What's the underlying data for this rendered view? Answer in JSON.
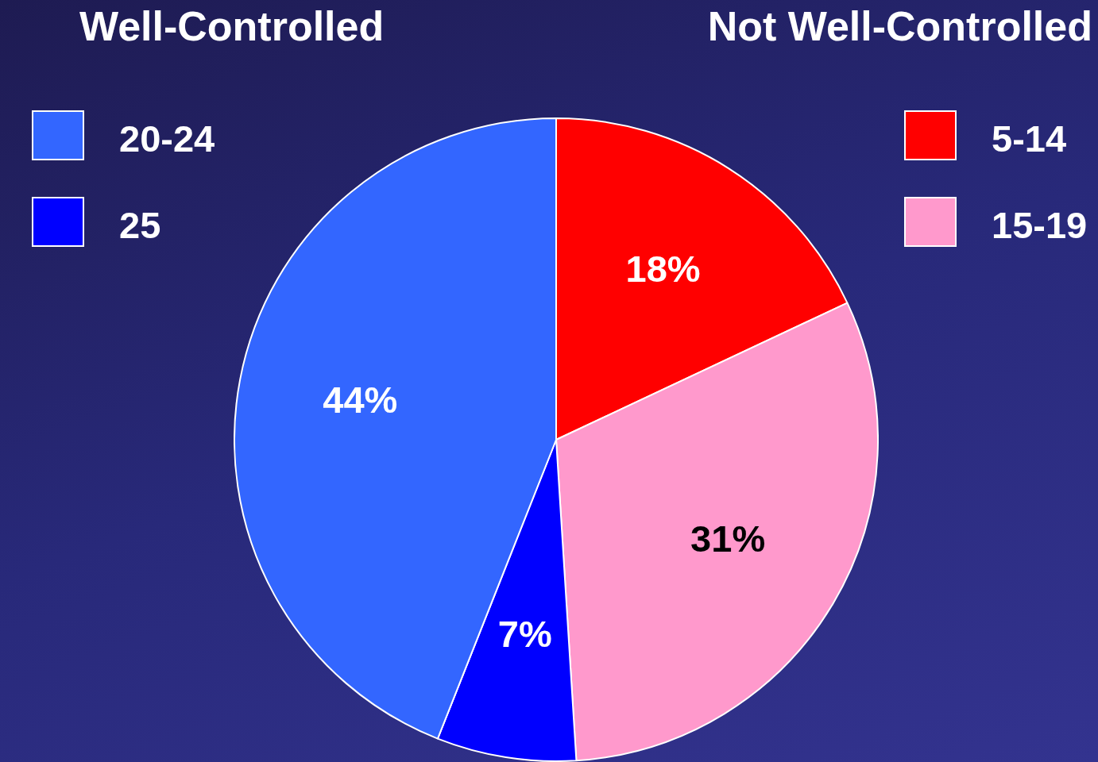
{
  "chart_data": {
    "type": "pie",
    "categories": [
      "5-14",
      "15-19",
      "25",
      "20-24"
    ],
    "values": [
      18,
      31,
      7,
      44
    ],
    "colors": [
      "#ff0000",
      "#ff99cc",
      "#0000ff",
      "#3366ff"
    ],
    "value_labels": [
      "18%",
      "31%",
      "7%",
      "44%"
    ],
    "annotations": [
      "Well-Controlled",
      "Not Well-Controlled"
    ],
    "legend": "top"
  }
}
